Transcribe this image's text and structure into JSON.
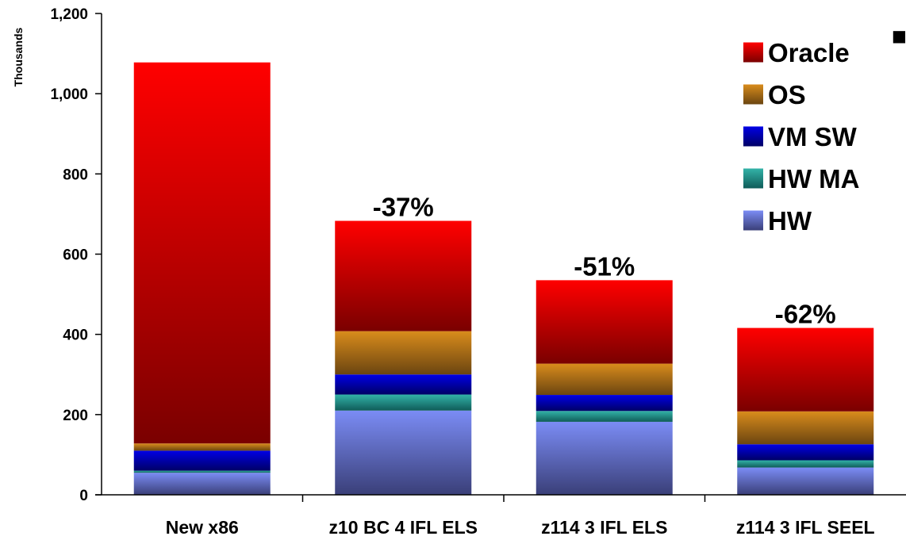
{
  "chart_data": {
    "type": "bar",
    "stacked": true,
    "ylabel": "Thousands",
    "ylim": [
      0,
      1200
    ],
    "yticks": [
      0,
      200,
      400,
      600,
      800,
      1000,
      1200
    ],
    "ytick_labels": [
      "0",
      "200",
      "400",
      "600",
      "800",
      "1,000",
      "1,200"
    ],
    "categories": [
      "New x86",
      "z10 BC 4 IFL ELS",
      "z114 3 IFL ELS",
      "z114 3 IFL SEEL"
    ],
    "series": [
      {
        "name": "HW",
        "values": [
          55,
          210,
          182,
          68
        ],
        "color_top": "#7b8cf5",
        "color_bottom": "#3a3f78"
      },
      {
        "name": "HW MA",
        "values": [
          5,
          40,
          27,
          18
        ],
        "color_top": "#33b3a8",
        "color_bottom": "#0f5c59"
      },
      {
        "name": "VM SW",
        "values": [
          50,
          50,
          40,
          40
        ],
        "color_top": "#0000e6",
        "color_bottom": "#000066"
      },
      {
        "name": "OS",
        "values": [
          18,
          108,
          78,
          82
        ],
        "color_top": "#d98c1c",
        "color_bottom": "#6b4510"
      },
      {
        "name": "Oracle",
        "values": [
          950,
          275,
          208,
          208
        ],
        "color_top": "#ff0000",
        "color_bottom": "#7a0000"
      }
    ],
    "annotations": [
      "",
      "-37%",
      "-51%",
      "-62%"
    ],
    "legend_order": [
      "Oracle",
      "OS",
      "VM SW",
      "HW MA",
      "HW"
    ],
    "legend_position": "top-right",
    "grid": false,
    "corner_marker": "■"
  }
}
